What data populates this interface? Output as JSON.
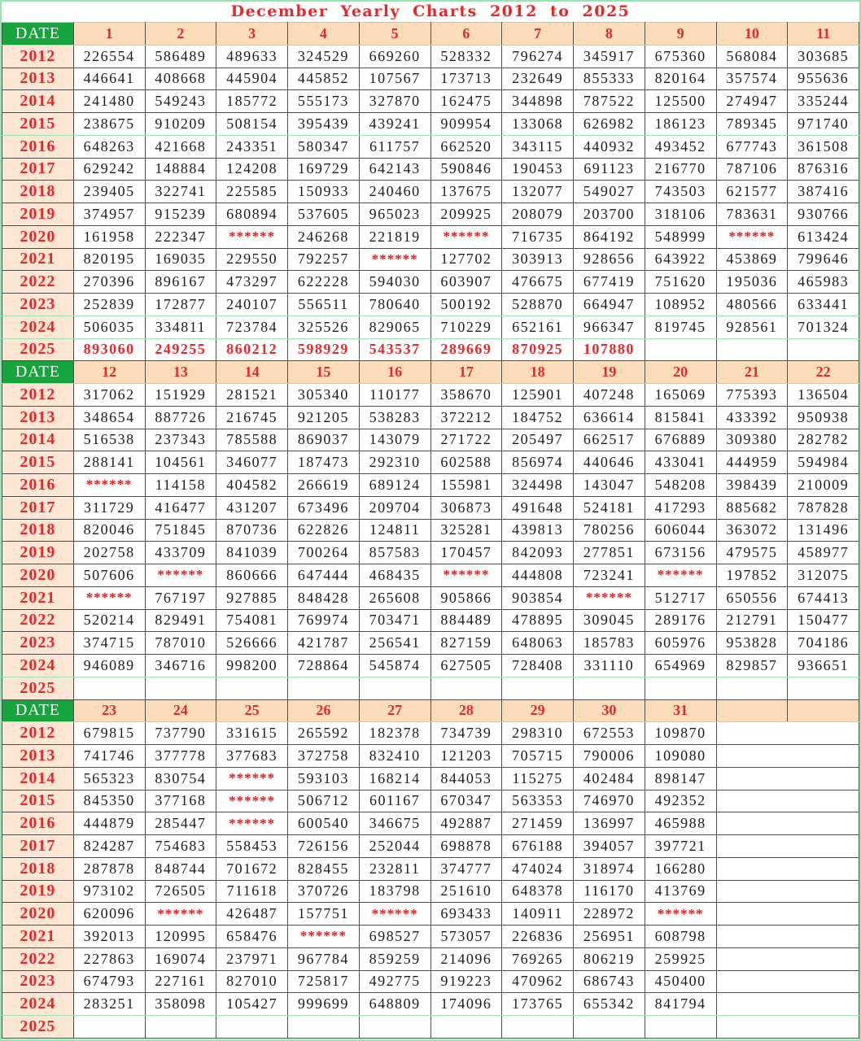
{
  "title": "December Yearly Charts 2012 to 2025",
  "missing_marker": "******",
  "colors": {
    "header_green": "#16a53c",
    "header_peach": "#fbdcb8",
    "year_peach": "#fae6d3",
    "red_text": "#e8272b",
    "missing_red": "#f01515",
    "frame_green": "#8fe9ad",
    "grid_line": "#4f4f4f",
    "data_text": "#1c1c1c"
  },
  "sections": [
    {
      "date_label": "DATE",
      "days": [
        "1",
        "2",
        "3",
        "4",
        "5",
        "6",
        "7",
        "8",
        "9",
        "10",
        "11"
      ],
      "extra_blank_headers": 0,
      "blank_tail": 0,
      "rows": [
        {
          "year": "2012",
          "values": [
            "226554",
            "586489",
            "489633",
            "324529",
            "669260",
            "528332",
            "796274",
            "345917",
            "675360",
            "568084",
            "303685"
          ]
        },
        {
          "year": "2013",
          "values": [
            "446641",
            "408668",
            "445904",
            "445852",
            "107567",
            "173713",
            "232649",
            "855333",
            "820164",
            "357574",
            "955636"
          ]
        },
        {
          "year": "2014",
          "values": [
            "241480",
            "549243",
            "185772",
            "555173",
            "327870",
            "162475",
            "344898",
            "787522",
            "125500",
            "274947",
            "335244"
          ]
        },
        {
          "year": "2015",
          "values": [
            "238675",
            "910209",
            "508154",
            "395439",
            "439241",
            "909954",
            "133068",
            "626982",
            "186123",
            "789345",
            "971740"
          ],
          "green_bottom": true
        },
        {
          "year": "2016",
          "values": [
            "648263",
            "421668",
            "243351",
            "580347",
            "611757",
            "662520",
            "343115",
            "440932",
            "493452",
            "677743",
            "361508"
          ]
        },
        {
          "year": "2017",
          "values": [
            "629242",
            "148884",
            "124208",
            "169729",
            "642143",
            "590846",
            "190453",
            "691123",
            "216770",
            "787106",
            "876316"
          ]
        },
        {
          "year": "2018",
          "values": [
            "239405",
            "322741",
            "225585",
            "150933",
            "240460",
            "137675",
            "132077",
            "549027",
            "743503",
            "621577",
            "387416"
          ]
        },
        {
          "year": "2019",
          "values": [
            "374957",
            "915239",
            "680894",
            "537605",
            "965023",
            "209925",
            "208079",
            "203700",
            "318106",
            "783631",
            "930766"
          ]
        },
        {
          "year": "2020",
          "values": [
            "161958",
            "222347",
            "******",
            "246268",
            "221819",
            "******",
            "716735",
            "864192",
            "548999",
            "******",
            "613424"
          ]
        },
        {
          "year": "2021",
          "values": [
            "820195",
            "169035",
            "229550",
            "792257",
            "******",
            "127702",
            "303913",
            "928656",
            "643922",
            "453869",
            "799646"
          ]
        },
        {
          "year": "2022",
          "values": [
            "270396",
            "896167",
            "473297",
            "622228",
            "594030",
            "603907",
            "476675",
            "677419",
            "751620",
            "195036",
            "465983"
          ]
        },
        {
          "year": "2023",
          "values": [
            "252839",
            "172877",
            "240107",
            "556511",
            "780640",
            "500192",
            "528870",
            "664947",
            "108952",
            "480566",
            "633441"
          ],
          "green_bottom": true
        },
        {
          "year": "2024",
          "values": [
            "506035",
            "334811",
            "723784",
            "325526",
            "829065",
            "710229",
            "652161",
            "966347",
            "819745",
            "928561",
            "701324"
          ],
          "green_bottom": true
        },
        {
          "year": "2025",
          "values": [
            "893060",
            "249255",
            "860212",
            "598929",
            "543537",
            "289669",
            "870925",
            "107880",
            "",
            "",
            ""
          ],
          "red": true
        }
      ]
    },
    {
      "date_label": "DATE",
      "days": [
        "12",
        "13",
        "14",
        "15",
        "16",
        "17",
        "18",
        "19",
        "20",
        "21",
        "22"
      ],
      "extra_blank_headers": 0,
      "blank_tail": 0,
      "rows": [
        {
          "year": "2012",
          "values": [
            "317062",
            "151929",
            "281521",
            "305340",
            "110177",
            "358670",
            "125901",
            "407248",
            "165069",
            "775393",
            "136504"
          ]
        },
        {
          "year": "2013",
          "values": [
            "348654",
            "887726",
            "216745",
            "921205",
            "538283",
            "372212",
            "184752",
            "636614",
            "815841",
            "433392",
            "950938"
          ]
        },
        {
          "year": "2014",
          "values": [
            "516538",
            "237343",
            "785588",
            "869037",
            "143079",
            "271722",
            "205497",
            "662517",
            "676889",
            "309380",
            "282782"
          ]
        },
        {
          "year": "2015",
          "values": [
            "288141",
            "104561",
            "346077",
            "187473",
            "292310",
            "602588",
            "856974",
            "440646",
            "433041",
            "444959",
            "594984"
          ]
        },
        {
          "year": "2016",
          "values": [
            "******",
            "114158",
            "404582",
            "266619",
            "689124",
            "155981",
            "324498",
            "143047",
            "548208",
            "398439",
            "210009"
          ]
        },
        {
          "year": "2017",
          "values": [
            "311729",
            "416477",
            "431207",
            "673496",
            "209704",
            "306873",
            "491648",
            "524181",
            "417293",
            "885682",
            "787828"
          ]
        },
        {
          "year": "2018",
          "values": [
            "820046",
            "751845",
            "870736",
            "622826",
            "124811",
            "325281",
            "439813",
            "780256",
            "606044",
            "363072",
            "131496"
          ]
        },
        {
          "year": "2019",
          "values": [
            "202758",
            "433709",
            "841039",
            "700264",
            "857583",
            "170457",
            "842093",
            "277851",
            "673156",
            "479575",
            "458977"
          ]
        },
        {
          "year": "2020",
          "values": [
            "507606",
            "******",
            "860666",
            "647444",
            "468435",
            "******",
            "444808",
            "723241",
            "******",
            "197852",
            "312075"
          ]
        },
        {
          "year": "2021",
          "values": [
            "******",
            "767197",
            "927885",
            "848428",
            "265608",
            "905866",
            "903854",
            "******",
            "512717",
            "650556",
            "674413"
          ]
        },
        {
          "year": "2022",
          "values": [
            "520214",
            "829491",
            "754081",
            "769974",
            "703471",
            "884489",
            "478895",
            "309045",
            "289176",
            "212791",
            "150477"
          ]
        },
        {
          "year": "2023",
          "values": [
            "374715",
            "787010",
            "526666",
            "421787",
            "256541",
            "827159",
            "648063",
            "185783",
            "605976",
            "953828",
            "704186"
          ]
        },
        {
          "year": "2024",
          "values": [
            "946089",
            "346716",
            "998200",
            "728864",
            "545874",
            "627505",
            "728408",
            "331110",
            "654969",
            "829857",
            "936651"
          ],
          "green_bottom": true
        },
        {
          "year": "2025",
          "values": [
            "",
            "",
            "",
            "",
            "",
            "",
            "",
            "",
            "",
            "",
            ""
          ],
          "red": true
        }
      ]
    },
    {
      "date_label": "DATE",
      "days": [
        "23",
        "24",
        "25",
        "26",
        "27",
        "28",
        "29",
        "30",
        "31"
      ],
      "extra_blank_headers": 2,
      "blank_tail": 2,
      "rows": [
        {
          "year": "2012",
          "values": [
            "679815",
            "737790",
            "331615",
            "265592",
            "182378",
            "734739",
            "298310",
            "672553",
            "109870"
          ]
        },
        {
          "year": "2013",
          "values": [
            "741746",
            "377778",
            "377683",
            "372758",
            "832410",
            "121203",
            "705715",
            "790006",
            "109080"
          ]
        },
        {
          "year": "2014",
          "values": [
            "565323",
            "830754",
            "******",
            "593103",
            "168214",
            "844053",
            "115275",
            "402484",
            "898147"
          ]
        },
        {
          "year": "2015",
          "values": [
            "845350",
            "377168",
            "******",
            "506712",
            "601167",
            "670347",
            "563353",
            "746970",
            "492352"
          ]
        },
        {
          "year": "2016",
          "values": [
            "444879",
            "285447",
            "******",
            "600540",
            "346675",
            "492887",
            "271459",
            "136997",
            "465988"
          ]
        },
        {
          "year": "2017",
          "values": [
            "824287",
            "754683",
            "558453",
            "726156",
            "252044",
            "698878",
            "676188",
            "394057",
            "397721"
          ]
        },
        {
          "year": "2018",
          "values": [
            "287878",
            "848744",
            "701672",
            "828455",
            "232811",
            "374777",
            "474024",
            "318974",
            "166280"
          ]
        },
        {
          "year": "2019",
          "values": [
            "973102",
            "726505",
            "711618",
            "370726",
            "183798",
            "251610",
            "648378",
            "116170",
            "413769"
          ]
        },
        {
          "year": "2020",
          "values": [
            "620096",
            "******",
            "426487",
            "157751",
            "******",
            "693433",
            "140911",
            "228972",
            "******"
          ]
        },
        {
          "year": "2021",
          "values": [
            "392013",
            "120995",
            "658476",
            "******",
            "698527",
            "573057",
            "226836",
            "256951",
            "608798"
          ]
        },
        {
          "year": "2022",
          "values": [
            "227863",
            "169074",
            "237971",
            "967784",
            "859259",
            "214096",
            "769265",
            "806219",
            "259925"
          ]
        },
        {
          "year": "2023",
          "values": [
            "674793",
            "227161",
            "827010",
            "725817",
            "492775",
            "919223",
            "470962",
            "686743",
            "450400"
          ]
        },
        {
          "year": "2024",
          "values": [
            "283251",
            "358098",
            "105427",
            "999699",
            "648809",
            "174096",
            "173765",
            "655342",
            "841794"
          ],
          "green_bottom": true
        },
        {
          "year": "2025",
          "values": [
            "",
            "",
            "",
            "",
            "",
            "",
            "",
            "",
            ""
          ],
          "red": true
        }
      ]
    }
  ]
}
